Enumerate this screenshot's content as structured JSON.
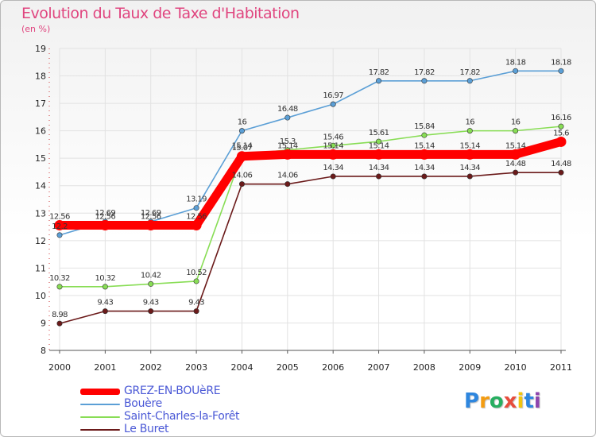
{
  "chart_data": {
    "type": "line",
    "title": "Evolution du Taux de Taxe d'Habitation",
    "subtitle": "(en %)",
    "xlabel": "",
    "ylabel": "",
    "x": [
      "2000",
      "2001",
      "2002",
      "2003",
      "2004",
      "2005",
      "2006",
      "2007",
      "2008",
      "2009",
      "2010",
      "2011"
    ],
    "ylim": [
      8,
      19
    ],
    "yticks": [
      8,
      9,
      10,
      11,
      12,
      13,
      14,
      15,
      16,
      17,
      18,
      19
    ],
    "grid": true,
    "series": [
      {
        "name": "GREZ-EN-BOUèRE",
        "color": "#ff0000",
        "values": [
          12.56,
          12.56,
          12.56,
          12.56,
          15.07,
          15.14,
          15.14,
          15.14,
          15.14,
          15.14,
          15.14,
          15.6
        ],
        "labels": [
          "12.56",
          "12.56",
          "12.56",
          "12.56",
          "15.07",
          "15.14",
          "15.14",
          "15.14",
          "15.14",
          "15.14",
          "15.14",
          "15.6"
        ]
      },
      {
        "name": "Bouère",
        "color": "#5b9fd6",
        "values": [
          12.2,
          12.69,
          12.69,
          13.19,
          16,
          16.48,
          16.97,
          17.82,
          17.82,
          17.82,
          18.18,
          18.18
        ],
        "labels": [
          "12.2",
          "12.69",
          "12.69",
          "13.19",
          "16",
          "16.48",
          "16.97",
          "17.82",
          "17.82",
          "17.82",
          "18.18",
          "18.18"
        ]
      },
      {
        "name": "Saint-Charles-la-Forêt",
        "color": "#88dd55",
        "values": [
          10.32,
          10.32,
          10.42,
          10.52,
          15.14,
          15.3,
          15.46,
          15.61,
          15.84,
          16,
          16,
          16.16
        ],
        "labels": [
          "10.32",
          "10.32",
          "10.42",
          "10.52",
          "15.14",
          "15.3",
          "15.46",
          "15.61",
          "15.84",
          "16",
          "16",
          "16.16"
        ]
      },
      {
        "name": "Le Buret",
        "color": "#6b1a1a",
        "values": [
          8.98,
          9.43,
          9.43,
          9.43,
          14.06,
          14.06,
          14.34,
          14.34,
          14.34,
          14.34,
          14.48,
          14.48
        ],
        "labels": [
          "8.98",
          "9.43",
          "9.43",
          "9.43",
          "14.06",
          "14.06",
          "14.34",
          "14.34",
          "14.34",
          "14.34",
          "14.48",
          "14.48"
        ]
      }
    ]
  },
  "legend": {
    "items": [
      {
        "label": "GREZ-EN-BOUèRE",
        "color": "#ff0000"
      },
      {
        "label": "Bouère",
        "color": "#5b9fd6"
      },
      {
        "label": "Saint-Charles-la-Forêt",
        "color": "#88dd55"
      },
      {
        "label": "Le Buret",
        "color": "#6b1a1a"
      }
    ]
  },
  "logo": {
    "letters": [
      "P",
      "r",
      "o",
      "x",
      "i",
      "t",
      "i"
    ],
    "colors": [
      "#2e86de",
      "#f39c12",
      "#27ae60",
      "#e74c3c",
      "#f1c40f",
      "#2e86de",
      "#8e44ad"
    ]
  }
}
